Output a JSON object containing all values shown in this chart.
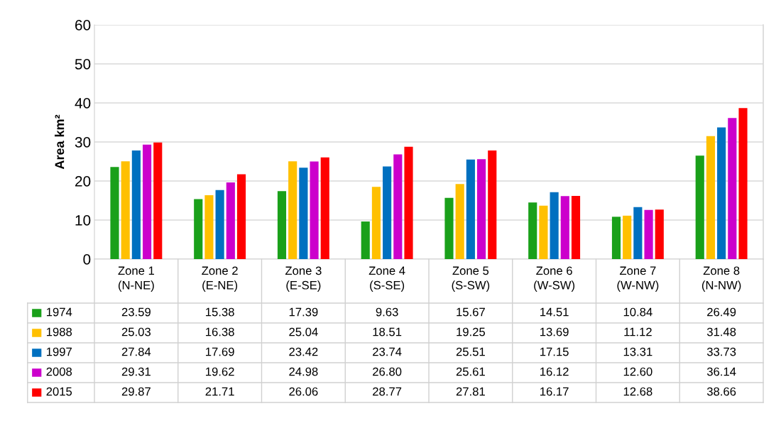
{
  "chart_data": {
    "type": "bar",
    "ylabel": "Area km²",
    "categories": [
      "Zone 1\n(N-NE)",
      "Zone 2\n(E-NE)",
      "Zone 3\n(E-SE)",
      "Zone 4\n(S-SE)",
      "Zone 5\n(S-SW)",
      "Zone 6\n(W-SW)",
      "Zone 7\n(W-NW)",
      "Zone 8\n(N-NW)"
    ],
    "series": [
      {
        "name": "1974",
        "color": "#1aa01a",
        "values": [
          23.59,
          15.38,
          17.39,
          9.63,
          15.67,
          14.51,
          10.84,
          26.49
        ],
        "value_labels": [
          "23.59",
          "15.38",
          "17.39",
          "9.63",
          "15.67",
          "14.51",
          "10.84",
          "26.49"
        ]
      },
      {
        "name": "1988",
        "color": "#ffc000",
        "values": [
          25.03,
          16.38,
          25.04,
          18.51,
          19.25,
          13.69,
          11.12,
          31.48
        ],
        "value_labels": [
          "25.03",
          "16.38",
          "25.04",
          "18.51",
          "19.25",
          "13.69",
          "11.12",
          "31.48"
        ]
      },
      {
        "name": "1997",
        "color": "#0070c0",
        "values": [
          27.84,
          17.69,
          23.42,
          23.74,
          25.51,
          17.15,
          13.31,
          33.73
        ],
        "value_labels": [
          "27.84",
          "17.69",
          "23.42",
          "23.74",
          "25.51",
          "17.15",
          "13.31",
          "33.73"
        ]
      },
      {
        "name": "2008",
        "color": "#cc00cc",
        "values": [
          29.31,
          19.62,
          24.98,
          26.8,
          25.61,
          16.12,
          12.6,
          36.14
        ],
        "value_labels": [
          "29.31",
          "19.62",
          "24.98",
          "26.80",
          "25.61",
          "16.12",
          "12.60",
          "36.14"
        ]
      },
      {
        "name": "2015",
        "color": "#ff0000",
        "values": [
          29.87,
          21.71,
          26.06,
          28.77,
          27.81,
          16.17,
          12.68,
          38.66
        ],
        "value_labels": [
          "29.87",
          "21.71",
          "26.06",
          "28.77",
          "27.81",
          "16.17",
          "12.68",
          "38.66"
        ]
      }
    ],
    "ylim": [
      0,
      60
    ],
    "yticks": [
      0,
      10,
      20,
      30,
      40,
      50,
      60
    ],
    "grid": true,
    "legend": "bottom left"
  }
}
